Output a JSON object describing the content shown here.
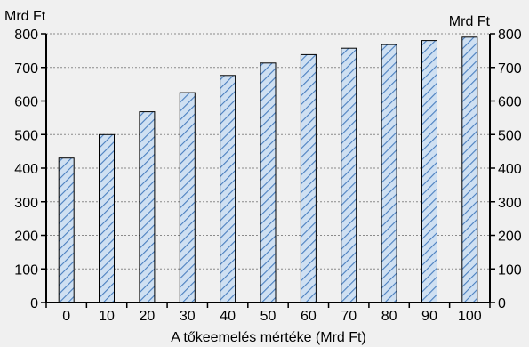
{
  "chart_data": {
    "type": "bar",
    "categories": [
      "0",
      "10",
      "20",
      "30",
      "40",
      "50",
      "60",
      "70",
      "80",
      "90",
      "100"
    ],
    "values": [
      430,
      500,
      568,
      625,
      676,
      713,
      738,
      757,
      768,
      780,
      790
    ],
    "xlabel": "A tőkeemelés mértéke (Mrd Ft)",
    "ylabel_left": "Mrd Ft",
    "ylabel_right": "Mrd Ft",
    "ylim": [
      0,
      800
    ],
    "yticks": [
      "0",
      "100",
      "200",
      "300",
      "400",
      "500",
      "600",
      "700",
      "800"
    ],
    "grid": true,
    "bar_fill": "#cfe0f2",
    "bar_hatch": "#4a7fbf",
    "bar_outline": "#000000",
    "background": "#f0f0f0"
  }
}
